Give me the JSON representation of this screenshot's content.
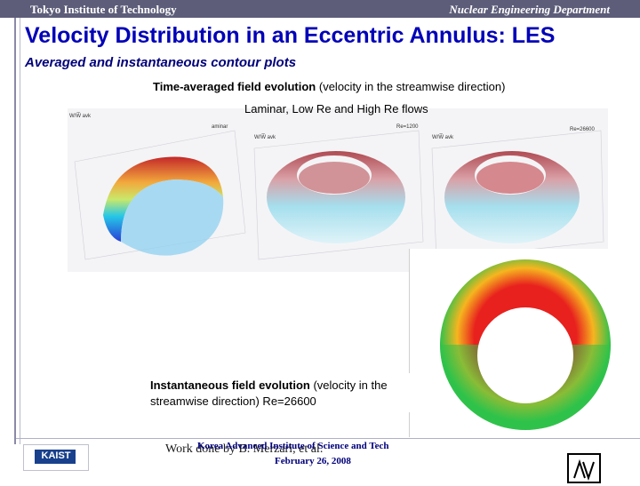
{
  "header": {
    "left": "Tokyo Institute of Technology",
    "right": "Nuclear Engineering Department"
  },
  "title": "Velocity Distribution in an Eccentric Annulus: LES",
  "subtitle": "Averaged and instantaneous contour plots",
  "caption1": {
    "bold": "Time-averaged field evolution",
    "normal": " (velocity in the streamwise direction)"
  },
  "caption2": "Laminar, Low Re and High Re flows",
  "plots": {
    "panel_titles": [
      "aminar",
      "Re=1200",
      "Re=26600"
    ],
    "y_label": "W/W̅ avk"
  },
  "caption3": {
    "bold": "Instantaneous field evolution",
    "normal": " (velocity in the streamwise direction) Re=26600"
  },
  "footer": {
    "logo": "KAIST",
    "institute": "Korea Advanced Institute of Science and Tech",
    "credit": "Work done by B. Merzari, et al.",
    "date": "February 26, 2008"
  },
  "colors": {
    "header_bar": "#5d5d7a",
    "title": "#0000b8",
    "subtitle": "#00007a"
  }
}
